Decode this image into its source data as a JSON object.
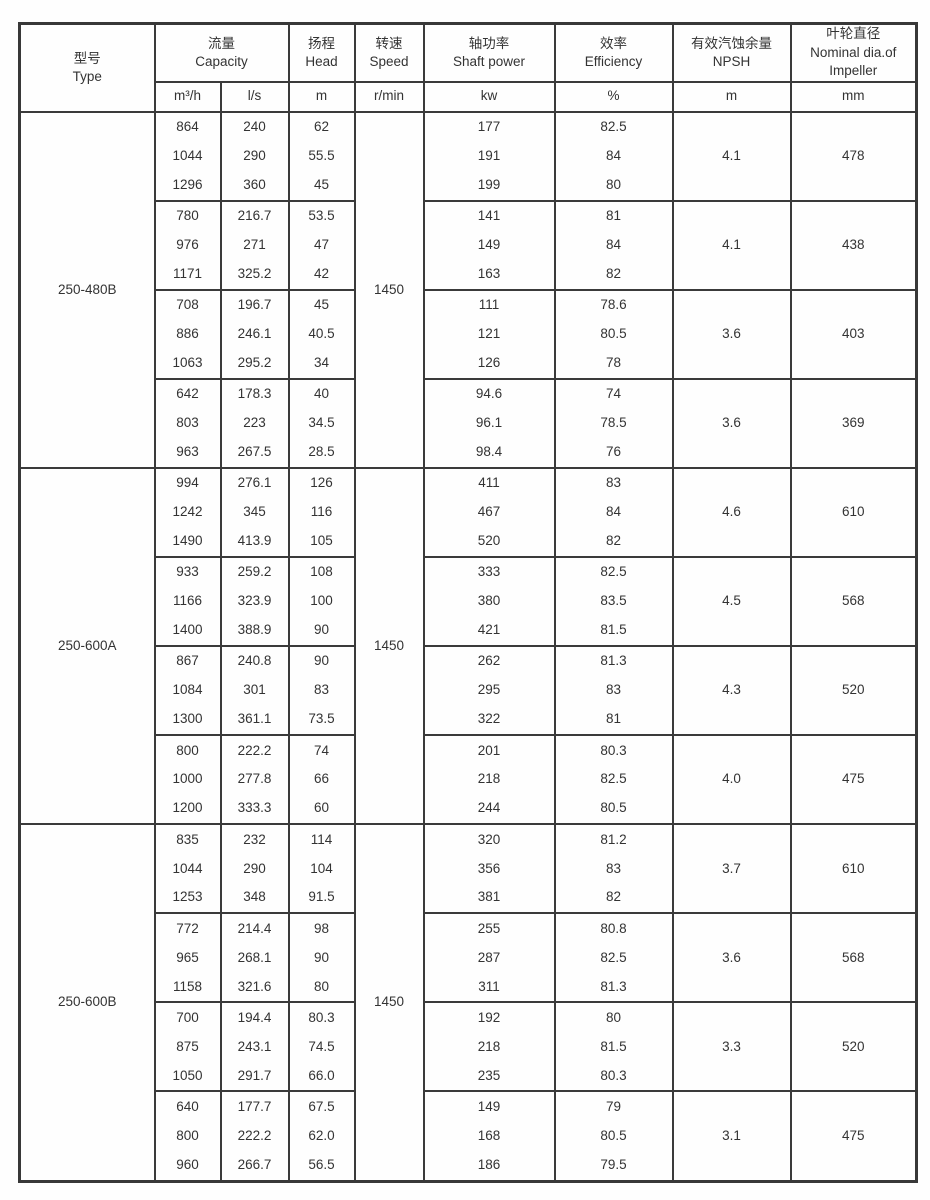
{
  "header": {
    "type": {
      "line1": "型号",
      "line2": "Type"
    },
    "capacity": {
      "line1": "流量",
      "line2": "Capacity"
    },
    "head": {
      "line1": "扬程",
      "line2": "Head"
    },
    "speed": {
      "line1": "转速",
      "line2": "Speed"
    },
    "shaft_power": {
      "line1": "轴功率",
      "line2": "Shaft power"
    },
    "efficiency": {
      "line1": "效率",
      "line2": "Efficiency"
    },
    "npsh": {
      "line1": "有效汽蚀余量",
      "line2": "NPSH"
    },
    "impeller": {
      "line1": "叶轮直径",
      "line2": "Nominal dia.of",
      "line3": "Impeller"
    },
    "units": {
      "capacity_m3h": "m³/h",
      "capacity_ls": "l/s",
      "head": "m",
      "speed": "r/min",
      "shaft_power": "kw",
      "efficiency": "%",
      "npsh": "m",
      "impeller": "mm"
    }
  },
  "chart_data": {
    "type": "table",
    "title": "Pump performance table",
    "columns": [
      "Type",
      "Capacity m³/h",
      "Capacity l/s",
      "Head m",
      "Speed r/min",
      "Shaft power kw",
      "Efficiency %",
      "NPSH m",
      "Nominal dia. of Impeller mm"
    ]
  },
  "groups": [
    {
      "type": "250-480B",
      "speed": "1450",
      "subgroups": [
        {
          "npsh": "4.1",
          "impeller": "478",
          "rows": [
            [
              "864",
              "240",
              "62",
              "177",
              "82.5"
            ],
            [
              "1044",
              "290",
              "55.5",
              "191",
              "84"
            ],
            [
              "1296",
              "360",
              "45",
              "199",
              "80"
            ]
          ]
        },
        {
          "npsh": "4.1",
          "impeller": "438",
          "rows": [
            [
              "780",
              "216.7",
              "53.5",
              "141",
              "81"
            ],
            [
              "976",
              "271",
              "47",
              "149",
              "84"
            ],
            [
              "1171",
              "325.2",
              "42",
              "163",
              "82"
            ]
          ]
        },
        {
          "npsh": "3.6",
          "impeller": "403",
          "rows": [
            [
              "708",
              "196.7",
              "45",
              "111",
              "78.6"
            ],
            [
              "886",
              "246.1",
              "40.5",
              "121",
              "80.5"
            ],
            [
              "1063",
              "295.2",
              "34",
              "126",
              "78"
            ]
          ]
        },
        {
          "npsh": "3.6",
          "impeller": "369",
          "rows": [
            [
              "642",
              "178.3",
              "40",
              "94.6",
              "74"
            ],
            [
              "803",
              "223",
              "34.5",
              "96.1",
              "78.5"
            ],
            [
              "963",
              "267.5",
              "28.5",
              "98.4",
              "76"
            ]
          ]
        }
      ]
    },
    {
      "type": "250-600A",
      "speed": "1450",
      "subgroups": [
        {
          "npsh": "4.6",
          "impeller": "610",
          "rows": [
            [
              "994",
              "276.1",
              "126",
              "411",
              "83"
            ],
            [
              "1242",
              "345",
              "116",
              "467",
              "84"
            ],
            [
              "1490",
              "413.9",
              "105",
              "520",
              "82"
            ]
          ]
        },
        {
          "npsh": "4.5",
          "impeller": "568",
          "rows": [
            [
              "933",
              "259.2",
              "108",
              "333",
              "82.5"
            ],
            [
              "1166",
              "323.9",
              "100",
              "380",
              "83.5"
            ],
            [
              "1400",
              "388.9",
              "90",
              "421",
              "81.5"
            ]
          ]
        },
        {
          "npsh": "4.3",
          "impeller": "520",
          "rows": [
            [
              "867",
              "240.8",
              "90",
              "262",
              "81.3"
            ],
            [
              "1084",
              "301",
              "83",
              "295",
              "83"
            ],
            [
              "1300",
              "361.1",
              "73.5",
              "322",
              "81"
            ]
          ]
        },
        {
          "npsh": "4.0",
          "impeller": "475",
          "rows": [
            [
              "800",
              "222.2",
              "74",
              "201",
              "80.3"
            ],
            [
              "1000",
              "277.8",
              "66",
              "218",
              "82.5"
            ],
            [
              "1200",
              "333.3",
              "60",
              "244",
              "80.5"
            ]
          ]
        }
      ]
    },
    {
      "type": "250-600B",
      "speed": "1450",
      "subgroups": [
        {
          "npsh": "3.7",
          "impeller": "610",
          "rows": [
            [
              "835",
              "232",
              "114",
              "320",
              "81.2"
            ],
            [
              "1044",
              "290",
              "104",
              "356",
              "83"
            ],
            [
              "1253",
              "348",
              "91.5",
              "381",
              "82"
            ]
          ]
        },
        {
          "npsh": "3.6",
          "impeller": "568",
          "rows": [
            [
              "772",
              "214.4",
              "98",
              "255",
              "80.8"
            ],
            [
              "965",
              "268.1",
              "90",
              "287",
              "82.5"
            ],
            [
              "1158",
              "321.6",
              "80",
              "311",
              "81.3"
            ]
          ]
        },
        {
          "npsh": "3.3",
          "impeller": "520",
          "rows": [
            [
              "700",
              "194.4",
              "80.3",
              "192",
              "80"
            ],
            [
              "875",
              "243.1",
              "74.5",
              "218",
              "81.5"
            ],
            [
              "1050",
              "291.7",
              "66.0",
              "235",
              "80.3"
            ]
          ]
        },
        {
          "npsh": "3.1",
          "impeller": "475",
          "rows": [
            [
              "640",
              "177.7",
              "67.5",
              "149",
              "79"
            ],
            [
              "800",
              "222.2",
              "62.0",
              "168",
              "80.5"
            ],
            [
              "960",
              "266.7",
              "56.5",
              "186",
              "79.5"
            ]
          ]
        }
      ]
    }
  ]
}
